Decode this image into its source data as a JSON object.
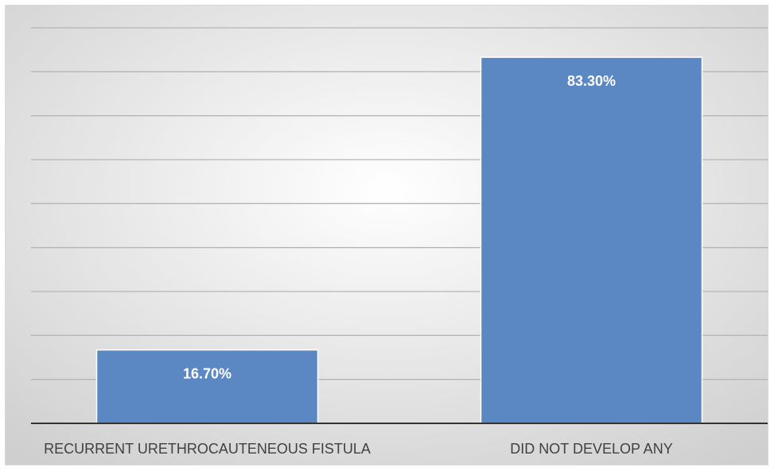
{
  "chart_data": {
    "type": "bar",
    "categories": [
      "RECURRENT URETHROCAUTENEOUS FISTULA",
      "DID NOT DEVELOP ANY"
    ],
    "values": [
      16.7,
      83.3
    ],
    "data_labels": [
      "16.70%",
      "83.30%"
    ],
    "title": "",
    "xlabel": "",
    "ylabel": "",
    "ylim": [
      0,
      90
    ],
    "grid": true,
    "legend": "none",
    "colors": {
      "bar": "#5b88c3",
      "bar_border": "#ffffff",
      "gridline": "#b5b5b5",
      "axis": "#333333",
      "background_center": "#ffffff",
      "background_edge": "#cfcfcf"
    }
  }
}
